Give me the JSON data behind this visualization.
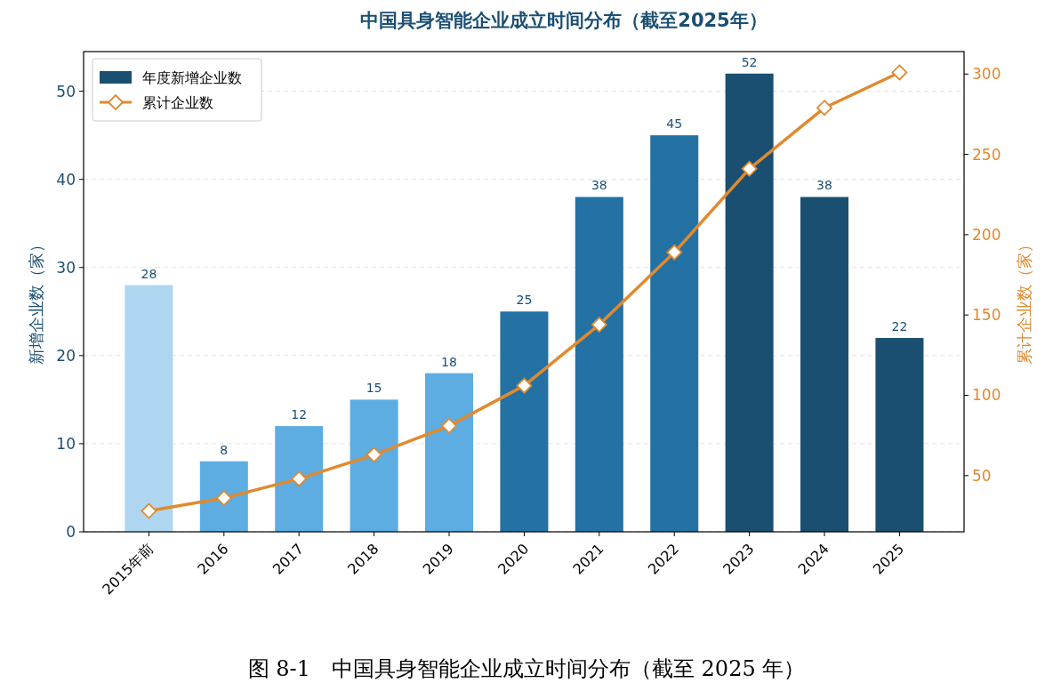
{
  "chart_data": {
    "type": "bar",
    "title": "中国具身智能企业成立时间分布（截至2025年）",
    "ylabel": "新增企业数（家）",
    "y2label": "累计企业数（家）",
    "categories": [
      "2015年前",
      "2016",
      "2017",
      "2018",
      "2019",
      "2020",
      "2021",
      "2022",
      "2023",
      "2024",
      "2025"
    ],
    "series": [
      {
        "name": "年度新增企业数",
        "color": "#1b4f72",
        "colors": [
          "#aed6f1",
          "#5dade2",
          "#5dade2",
          "#5dade2",
          "#5dade2",
          "#2471a3",
          "#2471a3",
          "#2471a3",
          "#1b4f72",
          "#1b4f72",
          "#1b4f72"
        ],
        "values": [
          28,
          8,
          12,
          15,
          18,
          25,
          38,
          45,
          52,
          38,
          22
        ],
        "data_labels": true
      },
      {
        "name": "累计企业数",
        "type": "line",
        "axis": "y2",
        "color": "#e08a2e",
        "marker": "diamond",
        "values": [
          28,
          36,
          48,
          63,
          81,
          106,
          144,
          189,
          241,
          279,
          301
        ]
      }
    ],
    "ylim": [
      0,
      54.5
    ],
    "yticks": [
      0,
      10,
      20,
      30,
      40,
      50
    ],
    "y2lim": [
      15,
      314
    ],
    "y2ticks": [
      50,
      100,
      150,
      200,
      250,
      300
    ],
    "grid": "y",
    "legend": "top left",
    "annotations": [
      "图 8-1　中国具身智能企业成立时间分布（截至 2025 年）"
    ]
  }
}
